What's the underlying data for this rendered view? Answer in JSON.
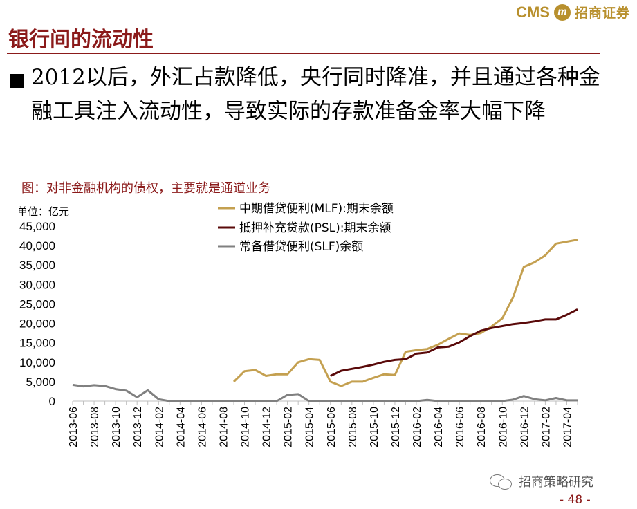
{
  "brand": {
    "cms": "CMS",
    "logo_glyph": "m",
    "name_cn": "招商证券"
  },
  "slide": {
    "title": "银行间的流动性",
    "bullet_text": "2012以后，外汇占款降低，央行同时降准，并且通过各种金融工具注入流动性，导致实际的存款准备金率大幅下降",
    "figure_caption": "图：对非金融机构的债权，主要就是通道业务",
    "unit_label": "单位：亿元"
  },
  "footer": {
    "watermark": "招商策略研究",
    "page_number": "- 48 -"
  },
  "chart_data": {
    "type": "line",
    "x": [
      "2013-06",
      "2013-07",
      "2013-08",
      "2013-09",
      "2013-10",
      "2013-11",
      "2013-12",
      "2014-01",
      "2014-02",
      "2014-03",
      "2014-04",
      "2014-05",
      "2014-06",
      "2014-07",
      "2014-08",
      "2014-09",
      "2014-10",
      "2014-11",
      "2014-12",
      "2015-01",
      "2015-02",
      "2015-03",
      "2015-04",
      "2015-05",
      "2015-06",
      "2015-07",
      "2015-08",
      "2015-09",
      "2015-10",
      "2015-11",
      "2015-12",
      "2016-01",
      "2016-02",
      "2016-03",
      "2016-04",
      "2016-05",
      "2016-06",
      "2016-07",
      "2016-08",
      "2016-09",
      "2016-10",
      "2016-11",
      "2016-12",
      "2017-01",
      "2017-02",
      "2017-03",
      "2017-04",
      "2017-05"
    ],
    "x_tick_labels": [
      "2013-06",
      "2013-08",
      "2013-10",
      "2013-12",
      "2014-02",
      "2014-04",
      "2014-06",
      "2014-08",
      "2014-10",
      "2014-12",
      "2015-02",
      "2015-04",
      "2015-06",
      "2015-08",
      "2015-10",
      "2015-12",
      "2016-02",
      "2016-04",
      "2016-06",
      "2016-08",
      "2016-10",
      "2016-12",
      "2017-02",
      "2017-04"
    ],
    "y_ticks": [
      "45,000",
      "40,000",
      "35,000",
      "30,000",
      "25,000",
      "20,000",
      "15,000",
      "10,000",
      "5,000",
      "0"
    ],
    "ylim": [
      0,
      45000
    ],
    "grid": false,
    "legend_position": "top-center",
    "series": [
      {
        "name": "中期借贷便利(MLF):期末余额",
        "color": "#c4a050",
        "values": [
          null,
          null,
          null,
          null,
          null,
          null,
          null,
          null,
          null,
          null,
          null,
          null,
          null,
          null,
          null,
          5000,
          7700,
          8000,
          6500,
          6900,
          6900,
          10000,
          10800,
          10600,
          5000,
          3900,
          5000,
          5000,
          6000,
          6900,
          6700,
          12700,
          13100,
          13400,
          14500,
          16000,
          17400,
          17000,
          17500,
          19200,
          21300,
          26700,
          34500,
          35700,
          37500,
          40500,
          41000,
          41500
        ]
      },
      {
        "name": "抵押补充贷款(PSL):期末余额",
        "color": "#5a0a0a",
        "values": [
          null,
          null,
          null,
          null,
          null,
          null,
          null,
          null,
          null,
          null,
          null,
          null,
          null,
          null,
          null,
          null,
          null,
          null,
          null,
          null,
          null,
          null,
          null,
          null,
          6500,
          7800,
          8300,
          8800,
          9400,
          10100,
          10600,
          10800,
          12200,
          12500,
          13800,
          14000,
          15100,
          16700,
          18100,
          18800,
          19300,
          19800,
          20100,
          20500,
          21000,
          21000,
          22200,
          23600
        ]
      },
      {
        "name": "常备借贷便利(SLF)余额",
        "color": "#808080",
        "values": [
          4200,
          3800,
          4100,
          3900,
          3100,
          2700,
          1000,
          2800,
          500,
          0,
          0,
          0,
          0,
          0,
          0,
          0,
          0,
          0,
          0,
          0,
          1600,
          1800,
          0,
          0,
          0,
          0,
          0,
          0,
          0,
          0,
          0,
          0,
          0,
          300,
          0,
          0,
          0,
          0,
          0,
          0,
          0,
          400,
          1300,
          500,
          200,
          800,
          200,
          200
        ]
      }
    ]
  }
}
